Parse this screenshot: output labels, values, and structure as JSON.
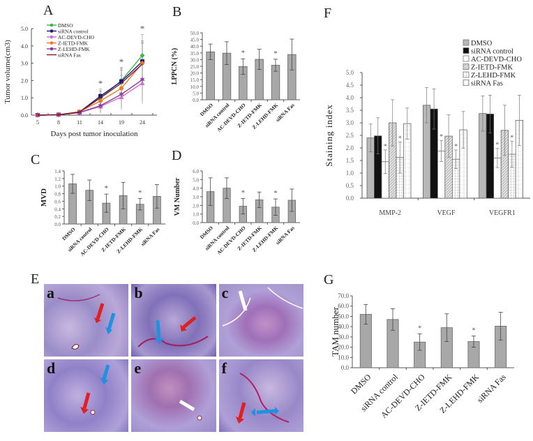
{
  "panels": {
    "A": {
      "letter": "A"
    },
    "B": {
      "letter": "B"
    },
    "C": {
      "letter": "C"
    },
    "D": {
      "letter": "D"
    },
    "E": {
      "letter": "E",
      "tiles": [
        "a",
        "b",
        "c",
        "d",
        "e",
        "f"
      ]
    },
    "F": {
      "letter": "F"
    },
    "G": {
      "letter": "G"
    }
  },
  "groups": [
    "DMSO",
    "siRNA control",
    "AC-DEVD-CHO",
    "Z-IETD-FMK",
    "Z-LEHD-FMK",
    "siRNA Fas"
  ],
  "chart_data": [
    {
      "panel": "A",
      "type": "line",
      "title": "",
      "xlabel": "Days post tumor inoculation",
      "ylabel": "Tumor volume(cm3)",
      "x": [
        5,
        8,
        11,
        14,
        19,
        24
      ],
      "ylim": [
        0,
        5.0
      ],
      "yticks": [
        "0.0",
        "1.0",
        "2.0",
        "3.0",
        "4.0",
        "5.0"
      ],
      "legend_position": "upper-left",
      "series": [
        {
          "name": "DMSO",
          "color": "#3cb44b",
          "marker": "diamond",
          "values": [
            0,
            0.02,
            0.18,
            1.0,
            2.0,
            3.45
          ]
        },
        {
          "name": "siRNA control",
          "color": "#1a1a80",
          "marker": "square",
          "values": [
            0,
            0.02,
            0.18,
            1.1,
            1.95,
            3.1
          ]
        },
        {
          "name": "AC-DEVD-CHO",
          "color": "#d070d0",
          "marker": "triangle",
          "values": [
            0,
            0.02,
            0.15,
            0.5,
            1.05,
            1.85
          ]
        },
        {
          "name": "Z-IETD-FMK",
          "color": "#f07820",
          "marker": "circle",
          "values": [
            0,
            0.02,
            0.2,
            0.82,
            1.55,
            3.0
          ]
        },
        {
          "name": "Z-LEHD-FMK",
          "color": "#8a3a9a",
          "marker": "star",
          "values": [
            0,
            0.02,
            0.15,
            0.55,
            1.2,
            2.05
          ]
        },
        {
          "name": "siRNA Fas",
          "color": "#7a1a2a",
          "marker": "none",
          "values": [
            0,
            0.02,
            0.18,
            1.0,
            1.85,
            2.95
          ]
        }
      ],
      "errors_approx": [
        0,
        0,
        0.05,
        0.4,
        0.75,
        1.2
      ],
      "annotations": [
        {
          "x": 14,
          "text": "*"
        },
        {
          "x": 19,
          "text": "*"
        },
        {
          "x": 24,
          "text": "*"
        }
      ]
    },
    {
      "panel": "B",
      "type": "bar",
      "ylabel": "LPPCN (%)",
      "categories": [
        "DMSO",
        "siRNA control",
        "AC-DEVD-CHO",
        "Z-IETD-FMK",
        "Z-LEHD-FMK",
        "siRNA Fas"
      ],
      "values": [
        35.8,
        34.8,
        24.8,
        30.2,
        25.8,
        33.8
      ],
      "errors": [
        5.8,
        8.5,
        5.8,
        7.5,
        4.5,
        11.5
      ],
      "significant": [
        false,
        false,
        true,
        false,
        true,
        false
      ],
      "ylim": [
        0,
        50
      ],
      "yticks": [
        "0.0",
        "5.0",
        "10.0",
        "15.0",
        "20.0",
        "25.0",
        "30.0",
        "35.0",
        "40.0",
        "45.0",
        "50.0"
      ]
    },
    {
      "panel": "C",
      "type": "bar",
      "ylabel": "MVD",
      "categories": [
        "DMSO",
        "siRNA control",
        "AC-DEVD-CHO",
        "Z-IETD-FMK",
        "Z-LEHD-FMK",
        "siRNA Fas"
      ],
      "values": [
        1.06,
        0.89,
        0.55,
        0.75,
        0.52,
        0.73
      ],
      "errors": [
        0.25,
        0.27,
        0.24,
        0.35,
        0.15,
        0.31
      ],
      "significant": [
        false,
        false,
        true,
        false,
        true,
        false
      ],
      "ylim": [
        0,
        1.4
      ],
      "yticks": [
        "0.0",
        "0.2",
        "0.4",
        "0.6",
        "0.8",
        "1.0",
        "1.2",
        "1.4"
      ]
    },
    {
      "panel": "D",
      "type": "bar",
      "ylabel": "VM Number",
      "categories": [
        "DMSO",
        "siRNA control",
        "AC-DEVD-CHO",
        "Z-IETD-FMK",
        "Z-LEHD-FMK",
        "siRNA Fas"
      ],
      "values": [
        3.6,
        4.0,
        1.9,
        2.65,
        1.8,
        2.6
      ],
      "errors": [
        1.6,
        1.2,
        0.9,
        0.9,
        0.95,
        1.3
      ],
      "significant": [
        false,
        false,
        true,
        false,
        true,
        false
      ],
      "ylim": [
        0,
        6.0
      ],
      "yticks": [
        "0.0",
        "1.0",
        "2.0",
        "3.0",
        "4.0",
        "5.0",
        "6.0"
      ]
    },
    {
      "panel": "F",
      "type": "bar",
      "ylabel": "Staining index",
      "categories": [
        "MMP-2",
        "VEGF",
        "VEGFR1"
      ],
      "legend_position": "upper-right",
      "ylim": [
        0,
        5.0
      ],
      "yticks": [
        "0.0",
        "0.5",
        "1.0",
        "1.5",
        "2.0",
        "2.5",
        "3.0",
        "3.5",
        "4.0",
        "4.5",
        "5.0"
      ],
      "series": [
        {
          "name": "DMSO",
          "fill": "#b8b8b8",
          "values": [
            2.4,
            3.7,
            3.37
          ],
          "errors": [
            0.55,
            0.7,
            0.7
          ]
        },
        {
          "name": "siRNA control",
          "fill": "#111111",
          "values": [
            2.48,
            3.55,
            3.35
          ],
          "errors": [
            0.72,
            0.8,
            0.75
          ]
        },
        {
          "name": "AC-DEVD-CHO",
          "fill": "#ffffff",
          "values": [
            1.45,
            1.88,
            1.6
          ],
          "errors": [
            0.47,
            0.42,
            0.38
          ]
        },
        {
          "name": "Z-IETD-FMK",
          "fill": "diagonal",
          "values": [
            3.0,
            2.47,
            2.7
          ],
          "errors": [
            0.92,
            0.85,
            1.0
          ]
        },
        {
          "name": "Z-LEHD-FMK",
          "fill": "grid",
          "values": [
            1.62,
            1.55,
            1.75
          ],
          "errors": [
            0.62,
            0.37,
            0.52
          ]
        },
        {
          "name": "siRNA Fas",
          "fill": "hlines",
          "values": [
            2.97,
            2.72,
            3.1
          ],
          "errors": [
            0.62,
            0.73,
            1.0
          ]
        }
      ],
      "significant": [
        "AC-DEVD-CHO",
        "Z-LEHD-FMK"
      ]
    },
    {
      "panel": "G",
      "type": "bar",
      "ylabel": "TAM number",
      "categories": [
        "DMSO",
        "siRNA control",
        "AC-DEVD-CHO",
        "Z-IETD-FMK",
        "Z-LEHD-FMK",
        "siRNA Fas"
      ],
      "values": [
        52.0,
        47.0,
        25.0,
        39.0,
        25.5,
        40.5
      ],
      "errors": [
        9.5,
        10.5,
        8.0,
        13.5,
        5.5,
        13.5
      ],
      "significant": [
        false,
        false,
        true,
        false,
        true,
        false
      ],
      "ylim": [
        0,
        70
      ],
      "yticks": [
        "0.0",
        "10.0",
        "20.0",
        "30.0",
        "40.0",
        "50.0",
        "60.0",
        "70.0"
      ]
    }
  ]
}
